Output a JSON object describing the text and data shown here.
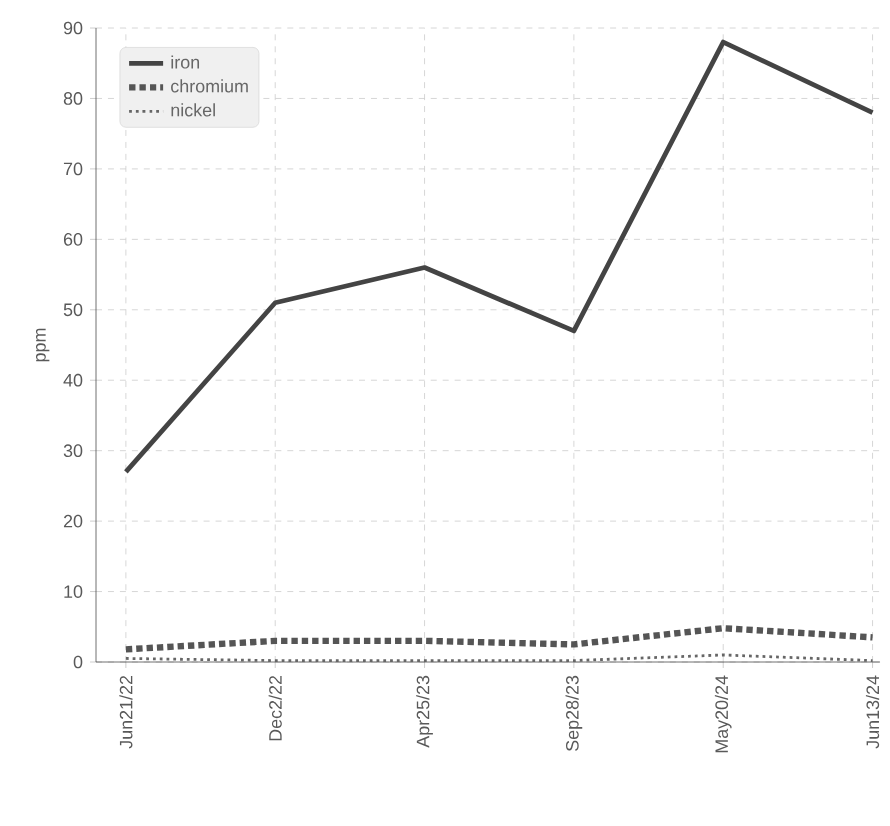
{
  "chart_data": {
    "type": "line",
    "ylabel": "ppm",
    "categories": [
      "Jun21/22",
      "Dec2/22",
      "Apr25/23",
      "Sep28/23",
      "May20/24",
      "Jun13/24"
    ],
    "series": [
      {
        "name": "iron",
        "color": "#444444",
        "line_style": "solid",
        "values": [
          27,
          51,
          56,
          47,
          88,
          78
        ]
      },
      {
        "name": "chromium",
        "color": "#555555",
        "line_style": "dotted",
        "values": [
          1.8,
          3,
          3,
          2.5,
          4.8,
          3.5
        ]
      },
      {
        "name": "nickel",
        "color": "#666666",
        "line_style": "dotted",
        "values": [
          0.5,
          0.2,
          0.2,
          0.2,
          1,
          0.2
        ]
      }
    ],
    "ylim": [
      0,
      90
    ],
    "yticks": [
      0,
      10,
      20,
      30,
      40,
      50,
      60,
      70,
      80,
      90
    ],
    "grid": true,
    "legend": "top left",
    "marker": "none"
  }
}
